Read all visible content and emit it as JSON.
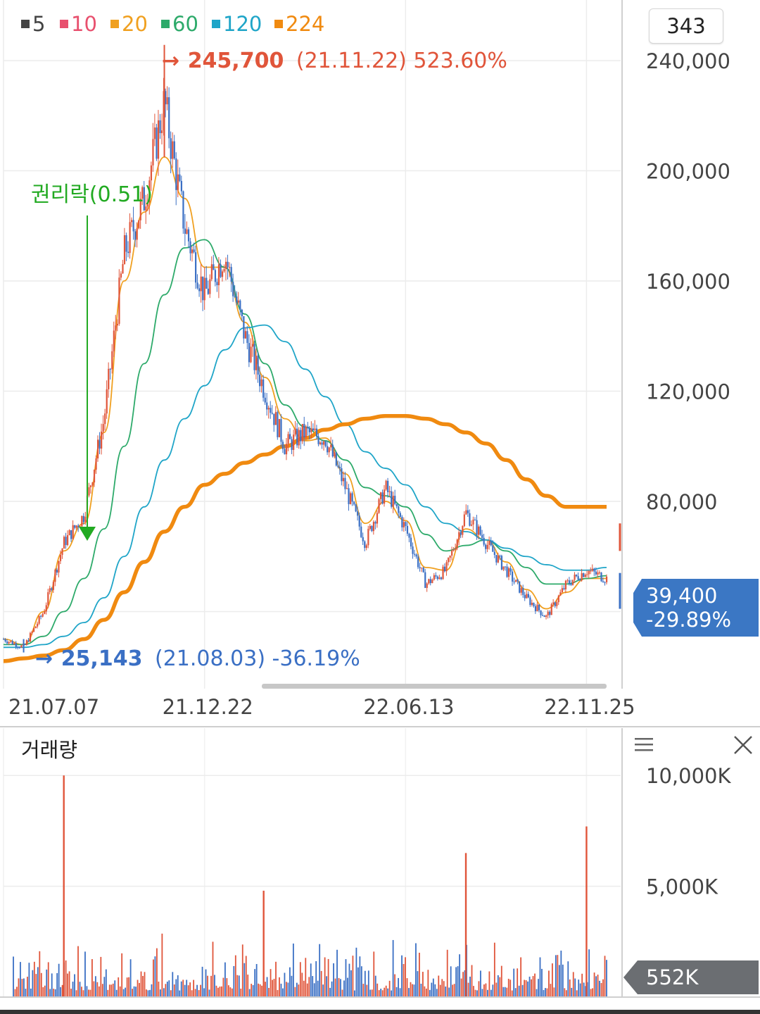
{
  "legend": [
    {
      "label": "5",
      "color": "#444444"
    },
    {
      "label": "10",
      "color": "#e8506e"
    },
    {
      "label": "20",
      "color": "#f0a020"
    },
    {
      "label": "60",
      "color": "#2daa6a"
    },
    {
      "label": "120",
      "color": "#1fa5c8"
    },
    {
      "label": "224",
      "color": "#f08a10"
    }
  ],
  "period_value": "343",
  "high_annotation": {
    "arrow": "→",
    "price": "245,700",
    "detail": "(21.11.22) 523.60%"
  },
  "low_annotation": {
    "arrow": "→",
    "price": "25,143",
    "detail": "(21.08.03) -36.19%"
  },
  "rights_annotation": "권리락(0.51)",
  "current_price": {
    "price": "39,400",
    "change": "-29.89%"
  },
  "volume": {
    "title": "거래량",
    "current_label": "552K"
  },
  "colors": {
    "up": "#e0553a",
    "down": "#3a6fc4",
    "current_box": "#3b77c4",
    "volume_box": "#6b6e72",
    "rights": "#22aa22"
  },
  "chart_data": {
    "type": "candlestick",
    "price_axis": {
      "ticks": [
        80000,
        120000,
        160000,
        200000,
        240000
      ],
      "tick_labels": [
        "80,000",
        "120,000",
        "160,000",
        "200,000",
        "240,000"
      ],
      "range": [
        12000,
        262000
      ]
    },
    "date_ticks": [
      "21.07.07",
      "21.12.22",
      "22.06.13",
      "22.11.25"
    ],
    "price_path": [
      {
        "date": "21.07.07",
        "close": 30000
      },
      {
        "date": "21.08.03",
        "close": 27000
      },
      {
        "date": "21.08.20",
        "close": 40000
      },
      {
        "date": "21.09.01",
        "close": 65000
      },
      {
        "date": "21.09.20",
        "close": 75000
      },
      {
        "date": "21.10.05",
        "close": 110000
      },
      {
        "date": "21.10.20",
        "close": 170000
      },
      {
        "date": "21.11.05",
        "close": 190000
      },
      {
        "date": "21.11.22",
        "close": 225000
      },
      {
        "date": "21.12.05",
        "close": 180000
      },
      {
        "date": "21.12.22",
        "close": 155000
      },
      {
        "date": "22.01.10",
        "close": 170000
      },
      {
        "date": "22.01.25",
        "close": 140000
      },
      {
        "date": "22.02.10",
        "close": 120000
      },
      {
        "date": "22.02.25",
        "close": 100000
      },
      {
        "date": "22.03.15",
        "close": 105000
      },
      {
        "date": "22.04.05",
        "close": 103000
      },
      {
        "date": "22.04.20",
        "close": 85000
      },
      {
        "date": "22.05.10",
        "close": 65000
      },
      {
        "date": "22.05.25",
        "close": 85000
      },
      {
        "date": "22.06.13",
        "close": 70000
      },
      {
        "date": "22.07.01",
        "close": 50000
      },
      {
        "date": "22.07.20",
        "close": 55000
      },
      {
        "date": "22.08.10",
        "close": 76000
      },
      {
        "date": "22.08.25",
        "close": 65000
      },
      {
        "date": "22.09.15",
        "close": 55000
      },
      {
        "date": "22.10.05",
        "close": 45000
      },
      {
        "date": "22.10.20",
        "close": 38000
      },
      {
        "date": "22.11.05",
        "close": 50000
      },
      {
        "date": "22.11.25",
        "close": 55000
      },
      {
        "date": "22.12.15",
        "close": 52000
      }
    ],
    "moving_averages": [
      {
        "name": "20",
        "values": [
          30000,
          28000,
          40000,
          62000,
          72000,
          105000,
          160000,
          185000,
          205000,
          190000,
          165000,
          165000,
          145000,
          125000,
          110000,
          102000,
          103000,
          90000,
          72000,
          80000,
          73000,
          56000,
          55000,
          70000,
          66000,
          58000,
          48000,
          41000,
          47000,
          52000,
          52000
        ]
      },
      {
        "name": "60",
        "values": [
          28000,
          28000,
          31000,
          40000,
          52000,
          70000,
          100000,
          130000,
          155000,
          172000,
          175000,
          165000,
          148000,
          130000,
          115000,
          107000,
          102000,
          95000,
          85000,
          82000,
          78000,
          68000,
          62000,
          64000,
          66000,
          62000,
          56000,
          50000,
          50000,
          52000,
          53000
        ]
      },
      {
        "name": "120",
        "values": [
          27000,
          27000,
          28000,
          31000,
          36000,
          45000,
          60000,
          78000,
          95000,
          110000,
          122000,
          135000,
          143000,
          144000,
          138000,
          128000,
          118000,
          108000,
          98000,
          92000,
          86000,
          78000,
          72000,
          69000,
          66000,
          63000,
          60000,
          57000,
          55000,
          55000,
          56000
        ]
      },
      {
        "name": "224",
        "values": [
          22000,
          23000,
          24000,
          26000,
          30000,
          37000,
          47000,
          58000,
          69000,
          78000,
          86000,
          90000,
          94000,
          97000,
          100000,
          103000,
          106000,
          108000,
          110000,
          111000,
          111000,
          110000,
          108000,
          105000,
          101000,
          95000,
          88000,
          82000,
          78000,
          78000,
          78000
        ]
      }
    ],
    "high": {
      "value": 245700,
      "date": "21.11.22",
      "change": "523.60%"
    },
    "low": {
      "value": 25143,
      "date": "21.08.03",
      "change": "-36.19%"
    },
    "current": {
      "value": 39400,
      "change": "-29.89%"
    },
    "volume_axis": {
      "ticks": [
        5000,
        10000
      ],
      "tick_labels": [
        "5,000K",
        "10,000K"
      ],
      "unit": "K"
    },
    "volume_spikes": [
      {
        "date": "21.09.01",
        "value": 10000
      },
      {
        "date": "21.12.22",
        "value": 4800
      },
      {
        "date": "22.03.01",
        "value": 4800
      },
      {
        "date": "22.08.10",
        "value": 6500
      },
      {
        "date": "22.11.25",
        "value": 7700
      }
    ]
  }
}
